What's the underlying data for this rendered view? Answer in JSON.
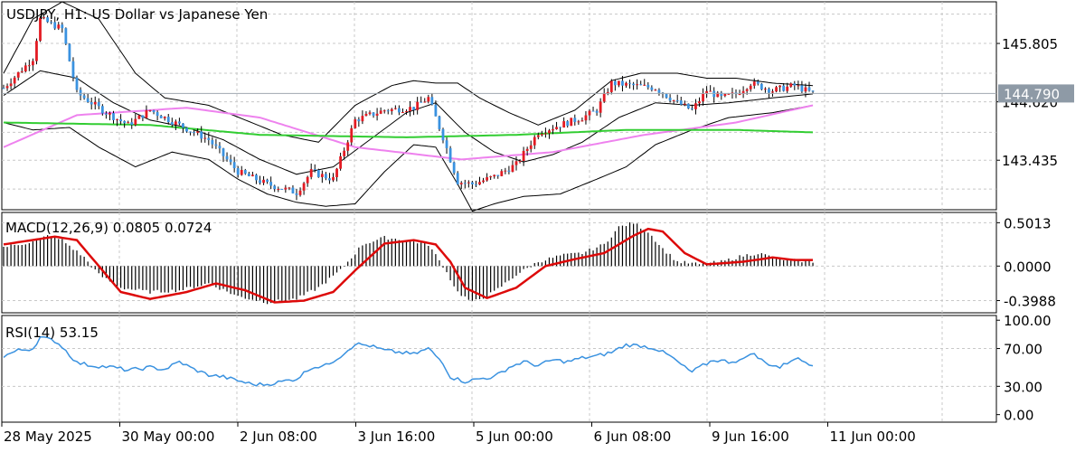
{
  "chart_data": {
    "type": "candlestick",
    "symbol": "USDJPY",
    "timeframe": "H1",
    "title": "USDJPY, H1:  US Dollar vs Japanese Yen",
    "price_axis": {
      "ticks": [
        "145.805",
        "144.620",
        "143.435"
      ],
      "tick_values": [
        145.805,
        144.62,
        143.435
      ],
      "range": [
        142.43,
        146.65
      ],
      "current_price": 144.79,
      "current_price_label": "144.790"
    },
    "time_axis": {
      "labels": [
        "28 May 2025",
        "30 May 00:00",
        "2 Jun 08:00",
        "3 Jun 16:00",
        "5 Jun 00:00",
        "6 Jun 08:00",
        "9 Jun 16:00",
        "11 Jun 00:00"
      ],
      "label_bar_index": [
        0,
        32,
        64,
        96,
        128,
        160,
        192,
        224
      ],
      "bar_count": 222
    },
    "price_keypoints": [
      [
        0,
        144.9
      ],
      [
        8,
        145.5
      ],
      [
        10,
        146.3
      ],
      [
        16,
        146.1
      ],
      [
        20,
        144.8
      ],
      [
        28,
        144.4
      ],
      [
        34,
        144.15
      ],
      [
        40,
        144.45
      ],
      [
        48,
        144.15
      ],
      [
        56,
        143.85
      ],
      [
        64,
        143.2
      ],
      [
        72,
        142.95
      ],
      [
        80,
        142.78
      ],
      [
        84,
        143.2
      ],
      [
        90,
        143.05
      ],
      [
        96,
        144.25
      ],
      [
        104,
        144.45
      ],
      [
        112,
        144.5
      ],
      [
        116,
        144.7
      ],
      [
        120,
        143.9
      ],
      [
        124,
        143.0
      ],
      [
        128,
        142.95
      ],
      [
        134,
        143.1
      ],
      [
        140,
        143.35
      ],
      [
        146,
        144.0
      ],
      [
        152,
        144.15
      ],
      [
        158,
        144.3
      ],
      [
        162,
        144.45
      ],
      [
        166,
        145.0
      ],
      [
        172,
        144.95
      ],
      [
        178,
        144.9
      ],
      [
        184,
        144.6
      ],
      [
        188,
        144.45
      ],
      [
        192,
        144.85
      ],
      [
        196,
        144.7
      ],
      [
        200,
        144.78
      ],
      [
        204,
        145.0
      ],
      [
        210,
        144.85
      ],
      [
        216,
        144.95
      ],
      [
        221,
        144.79
      ]
    ],
    "moving_averages": [
      {
        "name": "MA pink",
        "color": "#ee82ee",
        "keypoints": [
          [
            0,
            143.7
          ],
          [
            20,
            144.35
          ],
          [
            50,
            144.5
          ],
          [
            70,
            144.3
          ],
          [
            96,
            143.7
          ],
          [
            125,
            143.45
          ],
          [
            150,
            143.6
          ],
          [
            175,
            143.95
          ],
          [
            200,
            144.2
          ],
          [
            221,
            144.55
          ]
        ]
      },
      {
        "name": "MA green",
        "color": "#32cd32",
        "keypoints": [
          [
            0,
            144.2
          ],
          [
            40,
            144.15
          ],
          [
            70,
            143.95
          ],
          [
            110,
            143.9
          ],
          [
            140,
            143.95
          ],
          [
            170,
            144.05
          ],
          [
            200,
            144.05
          ],
          [
            221,
            144.0
          ]
        ]
      }
    ],
    "bollinger_bands": {
      "upper": [
        [
          0,
          145.2
        ],
        [
          8,
          146.3
        ],
        [
          16,
          146.65
        ],
        [
          26,
          146.3
        ],
        [
          36,
          145.2
        ],
        [
          44,
          144.7
        ],
        [
          56,
          144.55
        ],
        [
          66,
          144.25
        ],
        [
          76,
          143.95
        ],
        [
          86,
          143.8
        ],
        [
          96,
          144.55
        ],
        [
          106,
          144.95
        ],
        [
          112,
          145.05
        ],
        [
          118,
          145.0
        ],
        [
          124,
          145.0
        ],
        [
          130,
          144.7
        ],
        [
          138,
          144.4
        ],
        [
          146,
          144.15
        ],
        [
          156,
          144.45
        ],
        [
          166,
          145.05
        ],
        [
          174,
          145.2
        ],
        [
          184,
          145.2
        ],
        [
          192,
          145.1
        ],
        [
          200,
          145.1
        ],
        [
          210,
          145.0
        ],
        [
          221,
          144.95
        ]
      ],
      "middle": [
        [
          0,
          144.75
        ],
        [
          10,
          145.25
        ],
        [
          20,
          145.1
        ],
        [
          30,
          144.6
        ],
        [
          40,
          144.25
        ],
        [
          50,
          144.1
        ],
        [
          60,
          143.85
        ],
        [
          70,
          143.45
        ],
        [
          80,
          143.15
        ],
        [
          90,
          143.3
        ],
        [
          100,
          143.85
        ],
        [
          110,
          144.4
        ],
        [
          118,
          144.6
        ],
        [
          126,
          144.0
        ],
        [
          134,
          143.6
        ],
        [
          142,
          143.4
        ],
        [
          150,
          143.55
        ],
        [
          158,
          143.8
        ],
        [
          168,
          144.3
        ],
        [
          178,
          144.6
        ],
        [
          188,
          144.55
        ],
        [
          198,
          144.6
        ],
        [
          210,
          144.7
        ],
        [
          221,
          144.78
        ]
      ],
      "lower": [
        [
          0,
          144.2
        ],
        [
          8,
          144.05
        ],
        [
          18,
          144.1
        ],
        [
          26,
          143.7
        ],
        [
          36,
          143.3
        ],
        [
          46,
          143.6
        ],
        [
          56,
          143.45
        ],
        [
          64,
          143.05
        ],
        [
          72,
          142.75
        ],
        [
          80,
          142.58
        ],
        [
          88,
          142.5
        ],
        [
          96,
          142.55
        ],
        [
          104,
          143.2
        ],
        [
          112,
          143.75
        ],
        [
          118,
          143.7
        ],
        [
          124,
          142.95
        ],
        [
          128,
          142.4
        ],
        [
          134,
          142.55
        ],
        [
          142,
          142.7
        ],
        [
          152,
          142.75
        ],
        [
          162,
          143.05
        ],
        [
          170,
          143.3
        ],
        [
          178,
          143.75
        ],
        [
          188,
          144.05
        ],
        [
          198,
          144.3
        ],
        [
          210,
          144.4
        ],
        [
          221,
          144.55
        ]
      ]
    },
    "macd": {
      "label": "MACD(12,26,9) 0.0805 0.0724",
      "fast": 12,
      "slow": 26,
      "signal": 9,
      "main_value": 0.0805,
      "signal_value": 0.0724,
      "ticks": [
        "0.5013",
        "0.0000",
        "-0.3988"
      ],
      "tick_values": [
        0.5013,
        0.0,
        -0.3988
      ],
      "range": [
        -0.54,
        0.62
      ],
      "histogram_keypoints": [
        [
          0,
          0.22
        ],
        [
          8,
          0.28
        ],
        [
          12,
          0.35
        ],
        [
          16,
          0.3
        ],
        [
          22,
          0.1
        ],
        [
          26,
          -0.1
        ],
        [
          32,
          -0.25
        ],
        [
          40,
          -0.3
        ],
        [
          48,
          -0.28
        ],
        [
          56,
          -0.2
        ],
        [
          64,
          -0.35
        ],
        [
          72,
          -0.42
        ],
        [
          80,
          -0.38
        ],
        [
          86,
          -0.25
        ],
        [
          92,
          -0.05
        ],
        [
          98,
          0.25
        ],
        [
          104,
          0.33
        ],
        [
          110,
          0.3
        ],
        [
          116,
          0.25
        ],
        [
          120,
          0.0
        ],
        [
          124,
          -0.3
        ],
        [
          128,
          -0.42
        ],
        [
          134,
          -0.3
        ],
        [
          140,
          -0.1
        ],
        [
          146,
          0.05
        ],
        [
          152,
          0.12
        ],
        [
          158,
          0.15
        ],
        [
          164,
          0.25
        ],
        [
          168,
          0.45
        ],
        [
          172,
          0.5
        ],
        [
          176,
          0.4
        ],
        [
          180,
          0.2
        ],
        [
          184,
          0.05
        ],
        [
          190,
          0.02
        ],
        [
          196,
          0.05
        ],
        [
          202,
          0.12
        ],
        [
          206,
          0.15
        ],
        [
          212,
          0.08
        ],
        [
          221,
          0.05
        ]
      ],
      "signal_keypoints": [
        [
          0,
          0.25
        ],
        [
          14,
          0.34
        ],
        [
          20,
          0.3
        ],
        [
          26,
          0.0
        ],
        [
          32,
          -0.3
        ],
        [
          40,
          -0.38
        ],
        [
          50,
          -0.3
        ],
        [
          58,
          -0.2
        ],
        [
          66,
          -0.28
        ],
        [
          74,
          -0.42
        ],
        [
          82,
          -0.4
        ],
        [
          90,
          -0.3
        ],
        [
          96,
          -0.05
        ],
        [
          104,
          0.26
        ],
        [
          112,
          0.3
        ],
        [
          118,
          0.25
        ],
        [
          122,
          0.05
        ],
        [
          126,
          -0.25
        ],
        [
          132,
          -0.37
        ],
        [
          140,
          -0.25
        ],
        [
          148,
          0.0
        ],
        [
          156,
          0.08
        ],
        [
          164,
          0.15
        ],
        [
          172,
          0.35
        ],
        [
          176,
          0.43
        ],
        [
          180,
          0.4
        ],
        [
          186,
          0.15
        ],
        [
          192,
          0.02
        ],
        [
          202,
          0.05
        ],
        [
          210,
          0.1
        ],
        [
          216,
          0.07
        ],
        [
          221,
          0.07
        ]
      ]
    },
    "rsi": {
      "label": "RSI(14) 53.15",
      "period": 14,
      "value": 53.15,
      "ticks": [
        "100.00",
        "70.00",
        "30.00",
        "0.00"
      ],
      "tick_values": [
        100,
        70,
        30,
        0
      ],
      "levels": [
        70,
        30
      ],
      "keypoints": [
        [
          0,
          62
        ],
        [
          4,
          68
        ],
        [
          8,
          70
        ],
        [
          10,
          82
        ],
        [
          14,
          78
        ],
        [
          16,
          72
        ],
        [
          20,
          55
        ],
        [
          24,
          52
        ],
        [
          30,
          50
        ],
        [
          34,
          47
        ],
        [
          40,
          50
        ],
        [
          44,
          48
        ],
        [
          48,
          56
        ],
        [
          52,
          48
        ],
        [
          56,
          42
        ],
        [
          60,
          40
        ],
        [
          64,
          36
        ],
        [
          68,
          32
        ],
        [
          72,
          32
        ],
        [
          76,
          35
        ],
        [
          80,
          38
        ],
        [
          84,
          50
        ],
        [
          88,
          52
        ],
        [
          92,
          62
        ],
        [
          96,
          75
        ],
        [
          100,
          73
        ],
        [
          104,
          68
        ],
        [
          108,
          66
        ],
        [
          112,
          64
        ],
        [
          116,
          70
        ],
        [
          120,
          55
        ],
        [
          122,
          40
        ],
        [
          126,
          35
        ],
        [
          130,
          38
        ],
        [
          134,
          40
        ],
        [
          138,
          50
        ],
        [
          142,
          56
        ],
        [
          146,
          52
        ],
        [
          150,
          58
        ],
        [
          154,
          56
        ],
        [
          158,
          60
        ],
        [
          162,
          62
        ],
        [
          166,
          66
        ],
        [
          170,
          74
        ],
        [
          174,
          73
        ],
        [
          178,
          70
        ],
        [
          182,
          62
        ],
        [
          186,
          50
        ],
        [
          188,
          45
        ],
        [
          190,
          50
        ],
        [
          194,
          58
        ],
        [
          198,
          56
        ],
        [
          202,
          58
        ],
        [
          204,
          66
        ],
        [
          208,
          55
        ],
        [
          212,
          50
        ],
        [
          216,
          60
        ],
        [
          221,
          53
        ]
      ]
    },
    "colors": {
      "bull": "#e31b23",
      "bear": "#3a92e0",
      "wick": "#000000",
      "grid": "#c8c8c8",
      "price_line": "#a0a8b0",
      "price_label_bg": "#8e9aa6",
      "macd_signal": "#dd0a0a",
      "rsi_line": "#3a92e0"
    }
  }
}
